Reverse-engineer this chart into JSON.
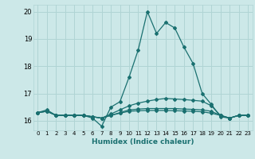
{
  "xlabel": "Humidex (Indice chaleur)",
  "background_color": "#cce8e8",
  "grid_color": "#b0d4d4",
  "line_color": "#1a7070",
  "xlim": [
    -0.5,
    23.5
  ],
  "ylim": [
    15.65,
    20.25
  ],
  "yticks": [
    16,
    17,
    18,
    19,
    20
  ],
  "xticks": [
    0,
    1,
    2,
    3,
    4,
    5,
    6,
    7,
    8,
    9,
    10,
    11,
    12,
    13,
    14,
    15,
    16,
    17,
    18,
    19,
    20,
    21,
    22,
    23
  ],
  "series": [
    [
      16.3,
      16.4,
      16.2,
      16.2,
      16.2,
      16.2,
      16.1,
      15.8,
      16.5,
      16.7,
      17.6,
      18.6,
      20.0,
      19.2,
      19.6,
      19.4,
      18.7,
      18.1,
      17.0,
      16.6,
      16.15,
      16.1,
      16.2,
      16.2
    ],
    [
      16.3,
      16.35,
      16.2,
      16.2,
      16.2,
      16.2,
      16.15,
      16.1,
      16.25,
      16.4,
      16.55,
      16.65,
      16.72,
      16.78,
      16.82,
      16.8,
      16.78,
      16.75,
      16.72,
      16.55,
      16.2,
      16.1,
      16.2,
      16.2
    ],
    [
      16.3,
      16.35,
      16.2,
      16.2,
      16.2,
      16.2,
      16.15,
      16.1,
      16.2,
      16.3,
      16.4,
      16.43,
      16.45,
      16.45,
      16.45,
      16.45,
      16.43,
      16.42,
      16.4,
      16.35,
      16.2,
      16.1,
      16.2,
      16.2
    ],
    [
      16.3,
      16.35,
      16.2,
      16.2,
      16.2,
      16.2,
      16.15,
      16.1,
      16.2,
      16.28,
      16.35,
      16.37,
      16.38,
      16.38,
      16.38,
      16.37,
      16.36,
      16.35,
      16.33,
      16.28,
      16.2,
      16.1,
      16.2,
      16.2
    ]
  ]
}
